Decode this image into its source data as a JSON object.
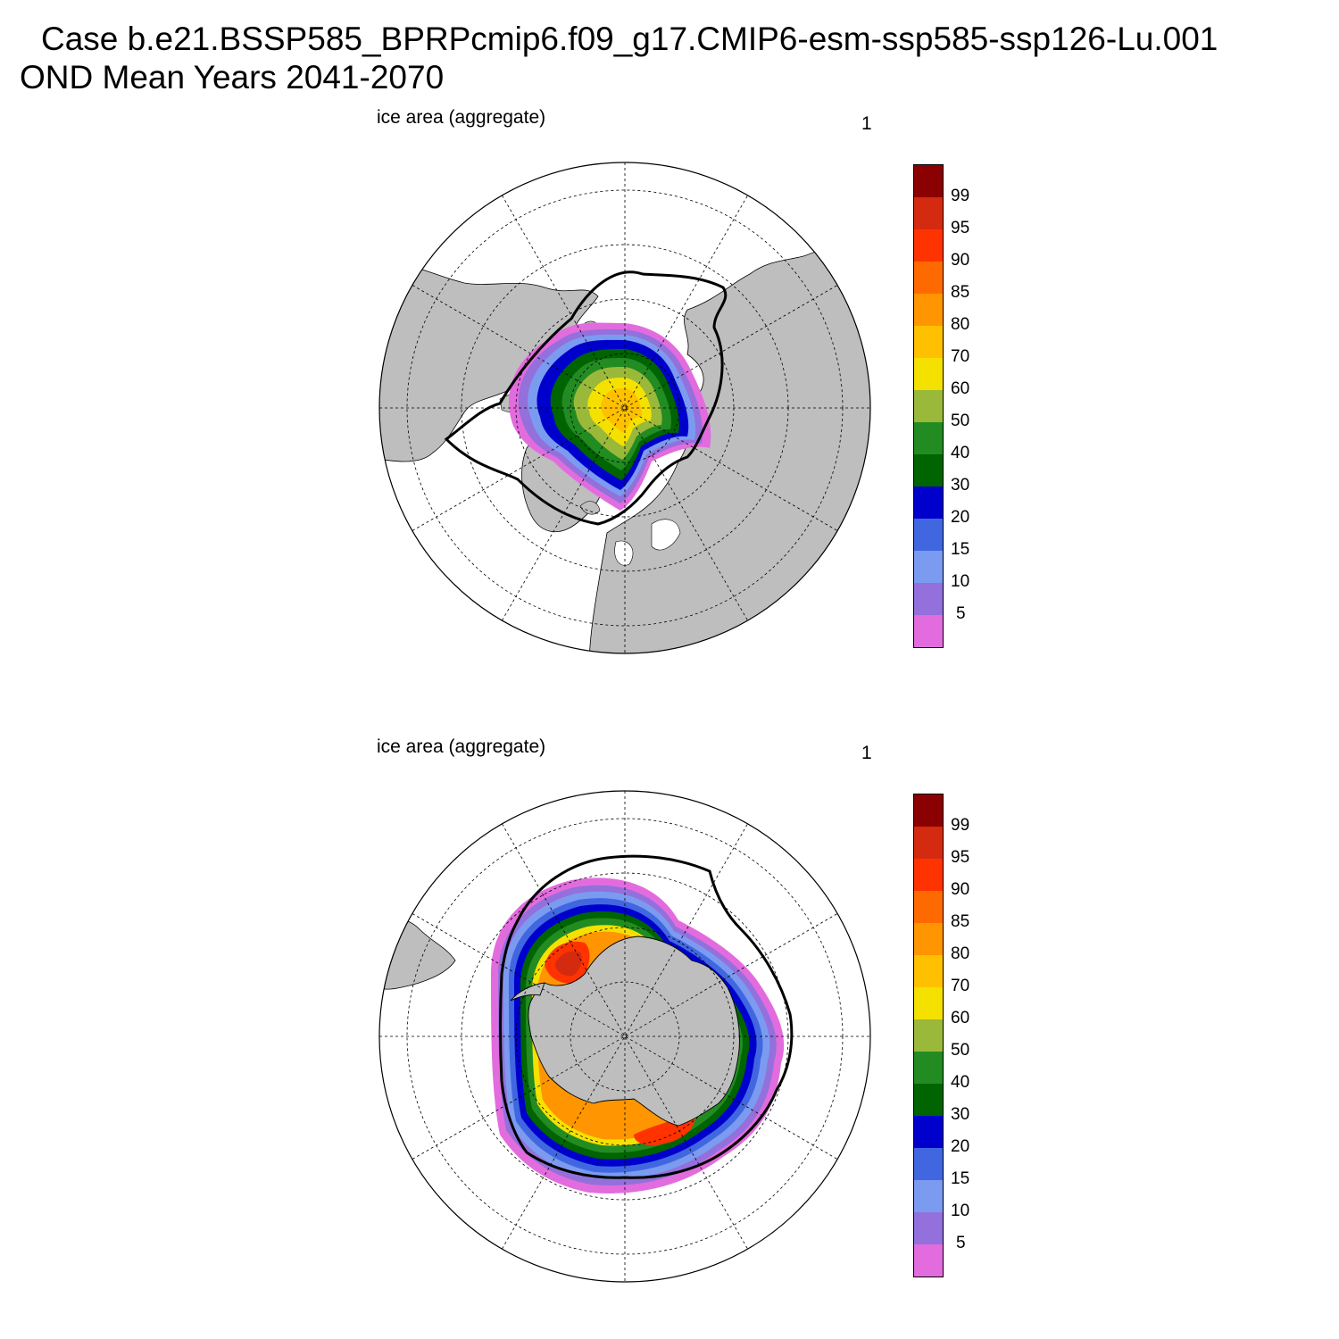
{
  "title": {
    "line1": "Case b.e21.BSSP585_BPRPcmip6.f09_g17.CMIP6-esm-ssp585-ssp126-Lu.001",
    "line2": "OND Mean   Years 2041-2070"
  },
  "colors": {
    "land": "#bebebe",
    "ocean": "#ffffff",
    "grid": "#000000",
    "scale": [
      "#e26cde",
      "#9370db",
      "#7b9bf0",
      "#4167e0",
      "#0000cc",
      "#006400",
      "#228b22",
      "#9ab93a",
      "#f5e100",
      "#ffc000",
      "#ff9500",
      "#ff6a00",
      "#ff3300",
      "#d42a10",
      "#8b0000"
    ]
  },
  "colorbar": {
    "labels": [
      "5",
      "10",
      "15",
      "20",
      "30",
      "40",
      "50",
      "60",
      "70",
      "80",
      "85",
      "90",
      "95",
      "99"
    ]
  },
  "panels": [
    {
      "id": "arctic",
      "label": "ice area  (aggregate)",
      "right_label": "1",
      "region": "Northern Hemisphere"
    },
    {
      "id": "antarctic",
      "label": "ice area  (aggregate)",
      "right_label": "1",
      "region": "Southern Hemisphere"
    }
  ]
}
